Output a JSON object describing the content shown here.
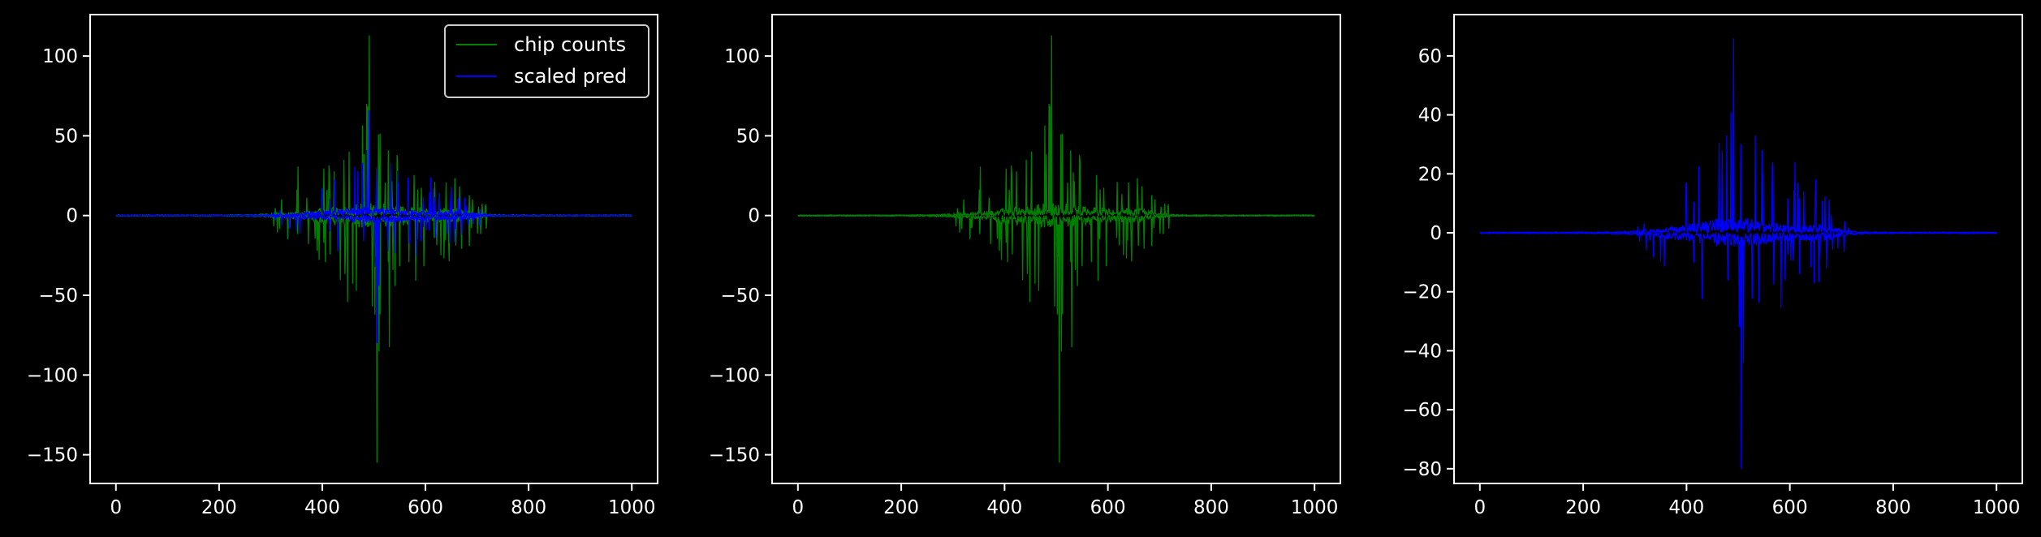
{
  "chart_data": [
    {
      "type": "line",
      "xlim": [
        -50,
        1050
      ],
      "ylim": [
        -168,
        126
      ],
      "xticks": [
        0,
        200,
        400,
        600,
        800,
        1000
      ],
      "yticks": [
        100,
        50,
        0,
        -50,
        -100,
        -150
      ],
      "xtick_labels": [
        "0",
        "200",
        "400",
        "600",
        "800",
        "1000"
      ],
      "ytick_labels": [
        "100",
        "50",
        "0",
        "−50",
        "−100",
        "−150"
      ],
      "legend": {
        "placement": "top-right"
      },
      "series": [
        {
          "name": "chip counts",
          "color": "#008000",
          "peak_max": 113,
          "peak_min": -155,
          "noise_amp": 5.2,
          "spike_count": 90
        },
        {
          "name": "scaled pred",
          "color": "#0000ff",
          "peak_max": 66,
          "peak_min": -80,
          "noise_amp": 3.4,
          "spike_count": 60
        }
      ]
    },
    {
      "type": "line",
      "xlim": [
        -50,
        1050
      ],
      "ylim": [
        -168,
        126
      ],
      "xticks": [
        0,
        200,
        400,
        600,
        800,
        1000
      ],
      "yticks": [
        100,
        50,
        0,
        -50,
        -100,
        -150
      ],
      "xtick_labels": [
        "0",
        "200",
        "400",
        "600",
        "800",
        "1000"
      ],
      "ytick_labels": [
        "100",
        "50",
        "0",
        "−50",
        "−100",
        "−150"
      ],
      "series": [
        {
          "color": "#008000",
          "peak_max": 113,
          "peak_min": -155,
          "noise_amp": 5.2,
          "spike_count": 90
        }
      ]
    },
    {
      "type": "line",
      "xlim": [
        -50,
        1050
      ],
      "ylim": [
        -85,
        74
      ],
      "xticks": [
        0,
        200,
        400,
        600,
        800,
        1000
      ],
      "yticks": [
        60,
        40,
        20,
        0,
        -20,
        -40,
        -60,
        -80
      ],
      "xtick_labels": [
        "0",
        "200",
        "400",
        "600",
        "800",
        "1000"
      ],
      "ytick_labels": [
        "60",
        "40",
        "20",
        "0",
        "−20",
        "−40",
        "−60",
        "−80"
      ],
      "series": [
        {
          "color": "#0000ff",
          "peak_max": 66,
          "peak_min": -80,
          "noise_amp": 3.4,
          "spike_count": 60
        }
      ]
    }
  ]
}
